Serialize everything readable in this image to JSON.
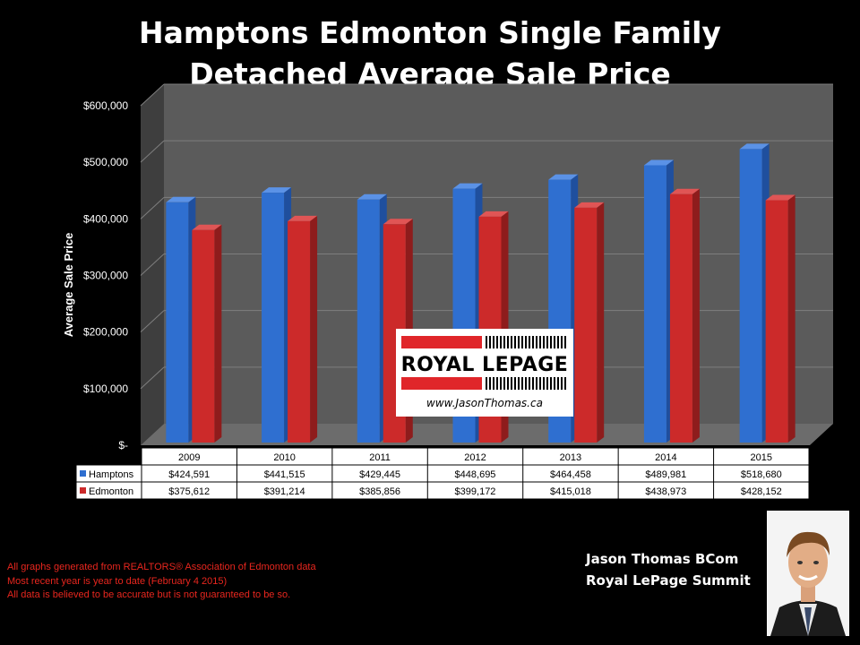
{
  "title_line1": "Hamptons Edmonton Single Family",
  "title_line2": "Detached Average Sale Price",
  "chart_data": {
    "type": "bar",
    "title": "Hamptons Edmonton Single Family Detached Average Sale Price",
    "ylabel": "Average Sale Price",
    "xlabel": "",
    "ylim": [
      0,
      600000
    ],
    "yticks": [
      {
        "value": 0,
        "label": "$-"
      },
      {
        "value": 100000,
        "label": "$100,000"
      },
      {
        "value": 200000,
        "label": "$200,000"
      },
      {
        "value": 300000,
        "label": "$300,000"
      },
      {
        "value": 400000,
        "label": "$400,000"
      },
      {
        "value": 500000,
        "label": "$500,000"
      },
      {
        "value": 600000,
        "label": "$600,000"
      }
    ],
    "grid": true,
    "categories": [
      "2009",
      "2010",
      "2011",
      "2012",
      "2013",
      "2014",
      "2015"
    ],
    "series": [
      {
        "name": "Hamptons",
        "color": "#2f6fd0",
        "values": [
          424591,
          441515,
          429445,
          448695,
          464458,
          489981,
          518680
        ],
        "labels": [
          "$424,591",
          "$441,515",
          "$429,445",
          "$448,695",
          "$464,458",
          "$489,981",
          "$518,680"
        ]
      },
      {
        "name": "Edmonton",
        "color": "#cc2a2a",
        "values": [
          375612,
          391214,
          385856,
          399172,
          415018,
          438973,
          428152
        ],
        "labels": [
          "$375,612",
          "$391,214",
          "$385,856",
          "$399,172",
          "$415,018",
          "$438,973",
          "$428,152"
        ]
      }
    ]
  },
  "logo": {
    "brand": "ROYAL LEPAGE",
    "url": "www.JasonThomas.ca"
  },
  "notes": [
    "All graphs generated from REALTORS® Association of Edmonton data",
    "Most recent year is year to date (February 4 2015)",
    "All data is believed to be accurate but is not guaranteed to be so."
  ],
  "signature": {
    "name": "Jason Thomas BCom",
    "company": "Royal LePage Summit"
  }
}
